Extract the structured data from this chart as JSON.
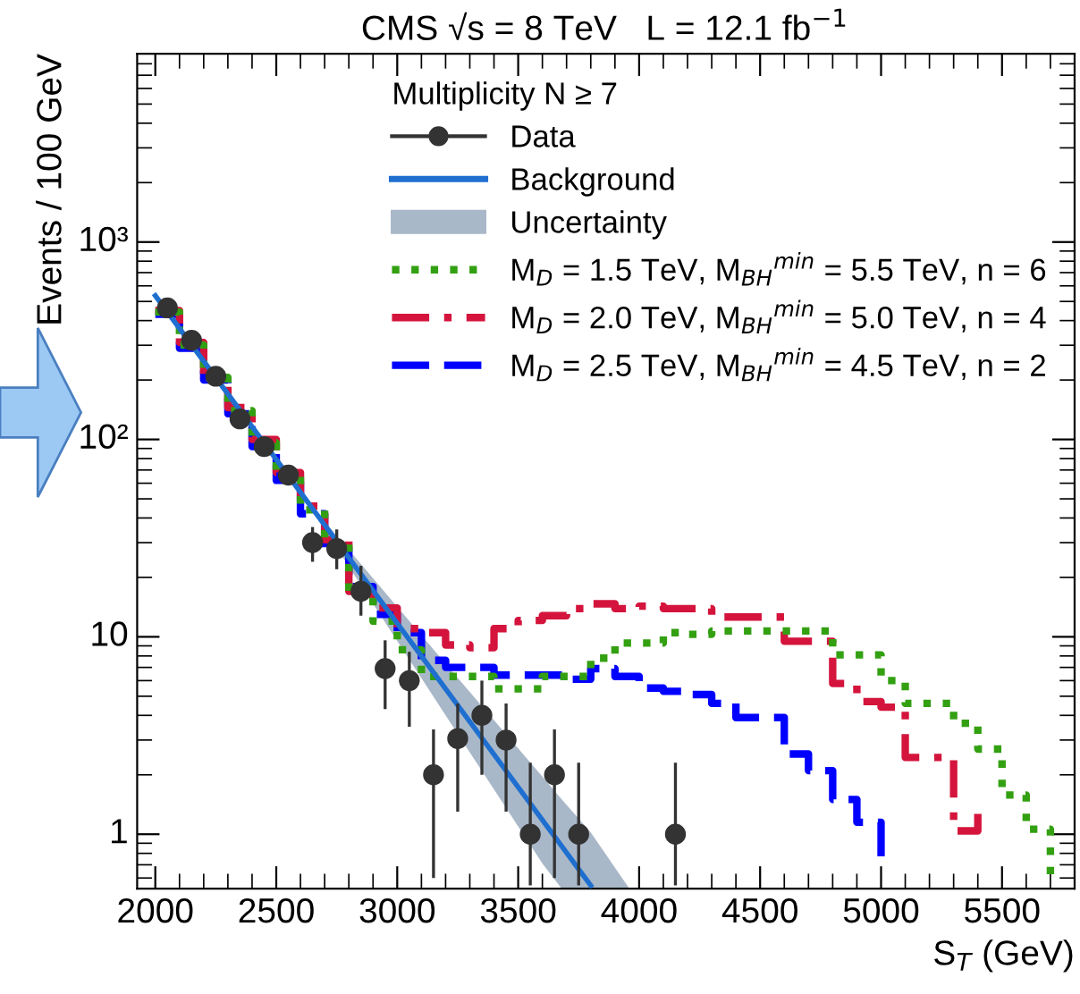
{
  "chart_data": {
    "type": "step",
    "title": "CMS √s = 8 TeV   L = 12.1 fb$^{−1}$",
    "xlabel": "S$_{T}$ (GeV)",
    "ylabel": "Events / 100 GeV",
    "legend_title": "Multiplicity N ≥ 7",
    "log": "y",
    "grid": false,
    "legend": "top right",
    "xlim": [
      1925,
      5800
    ],
    "xticks": [
      2000,
      2500,
      3000,
      3500,
      4000,
      4500,
      5000,
      5500
    ],
    "ylim": [
      0.53,
      9000
    ],
    "yticks": [
      1,
      10,
      {
        "value": 100,
        "label": "10²"
      },
      {
        "value": 1000,
        "label": "10³"
      }
    ],
    "series": [
      {
        "name": "Data",
        "type": "scatter",
        "color": "#333333",
        "x": [
          2050,
          2150,
          2250,
          2350,
          2450,
          2550,
          2650,
          2750,
          2850,
          2950,
          3050,
          3150,
          3250,
          3350,
          3450,
          3550,
          3650,
          3750,
          4150
        ],
        "values": [
          464,
          318,
          209,
          127,
          92,
          66,
          30,
          28,
          17,
          6.9,
          6.0,
          2.0,
          3.05,
          4.0,
          3.0,
          1.0,
          2.0,
          1.0,
          1.0
        ],
        "errors": [
          null,
          null,
          null,
          null,
          null,
          null,
          [
            24,
            36
          ],
          [
            22,
            35
          ],
          [
            12.8,
            22.9
          ],
          [
            4.3,
            9.6
          ],
          [
            3.5,
            8.4
          ],
          [
            0.6,
            3.4
          ],
          [
            1.3,
            4.6
          ],
          [
            2.0,
            6.0
          ],
          [
            1.3,
            4.6
          ],
          [
            0.55,
            2.3
          ],
          [
            0.6,
            3.4
          ],
          [
            0.55,
            2.3
          ],
          [
            0.55,
            2.3
          ]
        ]
      },
      {
        "name": "Background",
        "type": "line",
        "line_style": "solid",
        "color": "#1f6fd0",
        "x": [
          2000,
          3800
        ],
        "values": [
          535,
          0.55
        ]
      },
      {
        "name": "Uncertainty",
        "type": "area",
        "color": "#a9b8c8",
        "x": [
          2700,
          3200,
          3600,
          3680,
          3800,
          3960
        ],
        "values": [
          null,
          null,
          null,
          null,
          null,
          null
        ],
        "lower": [
          35,
          4.0,
          0.71,
          0.53,
          0.53,
          0.53
        ],
        "upper": [
          38.5,
          7.3,
          1.96,
          1.5,
          1.02,
          0.53
        ]
      },
      {
        "name": "M$_{D}$ = 1.5 TeV, M$_{BH}$$^{min}$ = 5.5 TeV, n = 6",
        "line_style": "dotted",
        "color": "#33a012",
        "x": [
          2000,
          2100,
          2200,
          2300,
          2400,
          2500,
          2600,
          2700,
          2800,
          2900,
          3000,
          3100,
          3200,
          3300,
          3400,
          3500,
          3600,
          3700,
          3800,
          3900,
          4000,
          4100,
          4200,
          4300,
          4400,
          4500,
          4600,
          4700,
          4800,
          4900,
          5000,
          5100,
          5200,
          5300,
          5400,
          5500,
          5600,
          5700
        ],
        "values": [
          442,
          301,
          206,
          140,
          96,
          65,
          44,
          30,
          17,
          12,
          8.6,
          6.3,
          6.3,
          6.3,
          5.45,
          5.45,
          6.3,
          6.3,
          7.8,
          9.3,
          9.3,
          10.5,
          10.3,
          10.7,
          10.7,
          10.7,
          10.7,
          10.7,
          8.1,
          8.1,
          6.0,
          4.6,
          4.6,
          3.65,
          2.7,
          1.58,
          1.06,
          0.58
        ]
      },
      {
        "name": "M$_{D}$ = 2.0 TeV, M$_{BH}$$^{min}$ = 5.0 TeV, n = 4",
        "line_style": "dashdot",
        "color": "#d4143c",
        "x": [
          2000,
          2100,
          2200,
          2300,
          2400,
          2500,
          2600,
          2700,
          2800,
          2900,
          3000,
          3100,
          3200,
          3300,
          3400,
          3500,
          3600,
          3700,
          3800,
          3900,
          4000,
          4100,
          4200,
          4300,
          4400,
          4500,
          4600,
          4700,
          4800,
          4900,
          5000,
          5100,
          5200,
          5300,
          5400
        ],
        "values": [
          450,
          310,
          212,
          145,
          100,
          68,
          46,
          31,
          17,
          14,
          11,
          10.5,
          9.1,
          8.8,
          11,
          12.1,
          12.8,
          13.9,
          14.7,
          13.9,
          14.3,
          13.9,
          13.9,
          12.6,
          12.6,
          12.6,
          9.5,
          9.5,
          5.8,
          4.7,
          4.4,
          2.45,
          2.45,
          1.04,
          1.27
        ]
      },
      {
        "name": "M$_{D}$ = 2.5 TeV, M$_{BH}$$^{min}$ = 4.5 TeV, n = 2",
        "line_style": "dashed",
        "color": "#0000ff",
        "x": [
          2000,
          2100,
          2200,
          2300,
          2400,
          2500,
          2600,
          2700,
          2800,
          2900,
          3000,
          3100,
          3200,
          3300,
          3400,
          3500,
          3600,
          3700,
          3800,
          3900,
          4000,
          4100,
          4200,
          4300,
          4400,
          4500,
          4600,
          4700,
          4800,
          4900,
          5000
        ],
        "values": [
          430,
          290,
          200,
          135,
          92,
          62,
          42,
          28,
          18,
          13,
          10.5,
          7.6,
          7.0,
          7.0,
          6.4,
          6.4,
          6.4,
          6.1,
          6.9,
          6.3,
          5.5,
          5.3,
          5.1,
          4.6,
          3.9,
          3.9,
          2.55,
          2.1,
          1.5,
          1.15,
          0.74
        ]
      }
    ]
  }
}
